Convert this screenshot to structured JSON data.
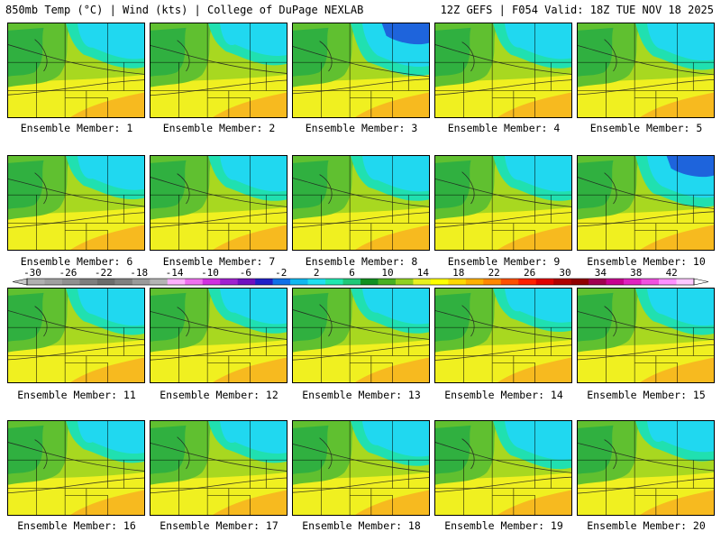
{
  "header": {
    "left": "850mb Temp (°C) | Wind (kts) | College of DuPage NEXLAB",
    "right": "12Z GEFS | F054 Valid: 18Z TUE NOV 18 2025"
  },
  "member_label_prefix": "Ensemble Member: ",
  "members": [
    {
      "id": 1,
      "label": "Ensemble Member: 1",
      "cold_level": 0.55
    },
    {
      "id": 2,
      "label": "Ensemble Member: 2",
      "cold_level": 0.45
    },
    {
      "id": 3,
      "label": "Ensemble Member: 3",
      "cold_level": 0.8
    },
    {
      "id": 4,
      "label": "Ensemble Member: 4",
      "cold_level": 0.55
    },
    {
      "id": 5,
      "label": "Ensemble Member: 5",
      "cold_level": 0.6
    },
    {
      "id": 6,
      "label": "Ensemble Member: 6",
      "cold_level": 0.5
    },
    {
      "id": 7,
      "label": "Ensemble Member: 7",
      "cold_level": 0.55
    },
    {
      "id": 8,
      "label": "Ensemble Member: 8",
      "cold_level": 0.55
    },
    {
      "id": 9,
      "label": "Ensemble Member: 9",
      "cold_level": 0.55
    },
    {
      "id": 10,
      "label": "Ensemble Member: 10",
      "cold_level": 0.75
    },
    {
      "id": 11,
      "label": "Ensemble Member: 11",
      "cold_level": 0.6
    },
    {
      "id": 12,
      "label": "Ensemble Member: 12",
      "cold_level": 0.55
    },
    {
      "id": 13,
      "label": "Ensemble Member: 13",
      "cold_level": 0.55
    },
    {
      "id": 14,
      "label": "Ensemble Member: 14",
      "cold_level": 0.5
    },
    {
      "id": 15,
      "label": "Ensemble Member: 15",
      "cold_level": 0.6
    },
    {
      "id": 16,
      "label": "Ensemble Member: 16",
      "cold_level": 0.45
    },
    {
      "id": 17,
      "label": "Ensemble Member: 17",
      "cold_level": 0.45
    },
    {
      "id": 18,
      "label": "Ensemble Member: 18",
      "cold_level": 0.55
    },
    {
      "id": 19,
      "label": "Ensemble Member: 19",
      "cold_level": 0.65
    },
    {
      "id": 20,
      "label": "Ensemble Member: 20",
      "cold_level": 0.4
    }
  ],
  "colorbar": {
    "labels": [
      "-30",
      "-26",
      "-22",
      "-18",
      "-14",
      "-10",
      "-6",
      "-2",
      "2",
      "6",
      "10",
      "14",
      "18",
      "22",
      "26",
      "30",
      "34",
      "38",
      "42"
    ],
    "colors": [
      "#b0b0b0",
      "#a0a0a0",
      "#909090",
      "#7e7e7e",
      "#6c6c6c",
      "#808080",
      "#9a9a9a",
      "#b4b4b4",
      "#ffb0ff",
      "#f070f0",
      "#d030e0",
      "#a020d0",
      "#7010c0",
      "#2020c8",
      "#1070e8",
      "#10b8f0",
      "#20e0f0",
      "#20e8b0",
      "#20c878",
      "#109020",
      "#48b020",
      "#90d020",
      "#e8f020",
      "#ffff00",
      "#ffd800",
      "#ffb000",
      "#ff8800",
      "#ff5000",
      "#ff2000",
      "#e00000",
      "#b00000",
      "#900000",
      "#a00050",
      "#c80090",
      "#e020c0",
      "#f050e0",
      "#ff90ff",
      "#ffc8ff"
    ]
  },
  "palette": {
    "cold_deep": "#1e64dc",
    "cold": "#20d8f0",
    "cool": "#20e0b0",
    "mid_green": "#30b040",
    "green": "#60c030",
    "yellow_green": "#a8d820",
    "yellow": "#f0f020",
    "orange": "#f8b020"
  }
}
